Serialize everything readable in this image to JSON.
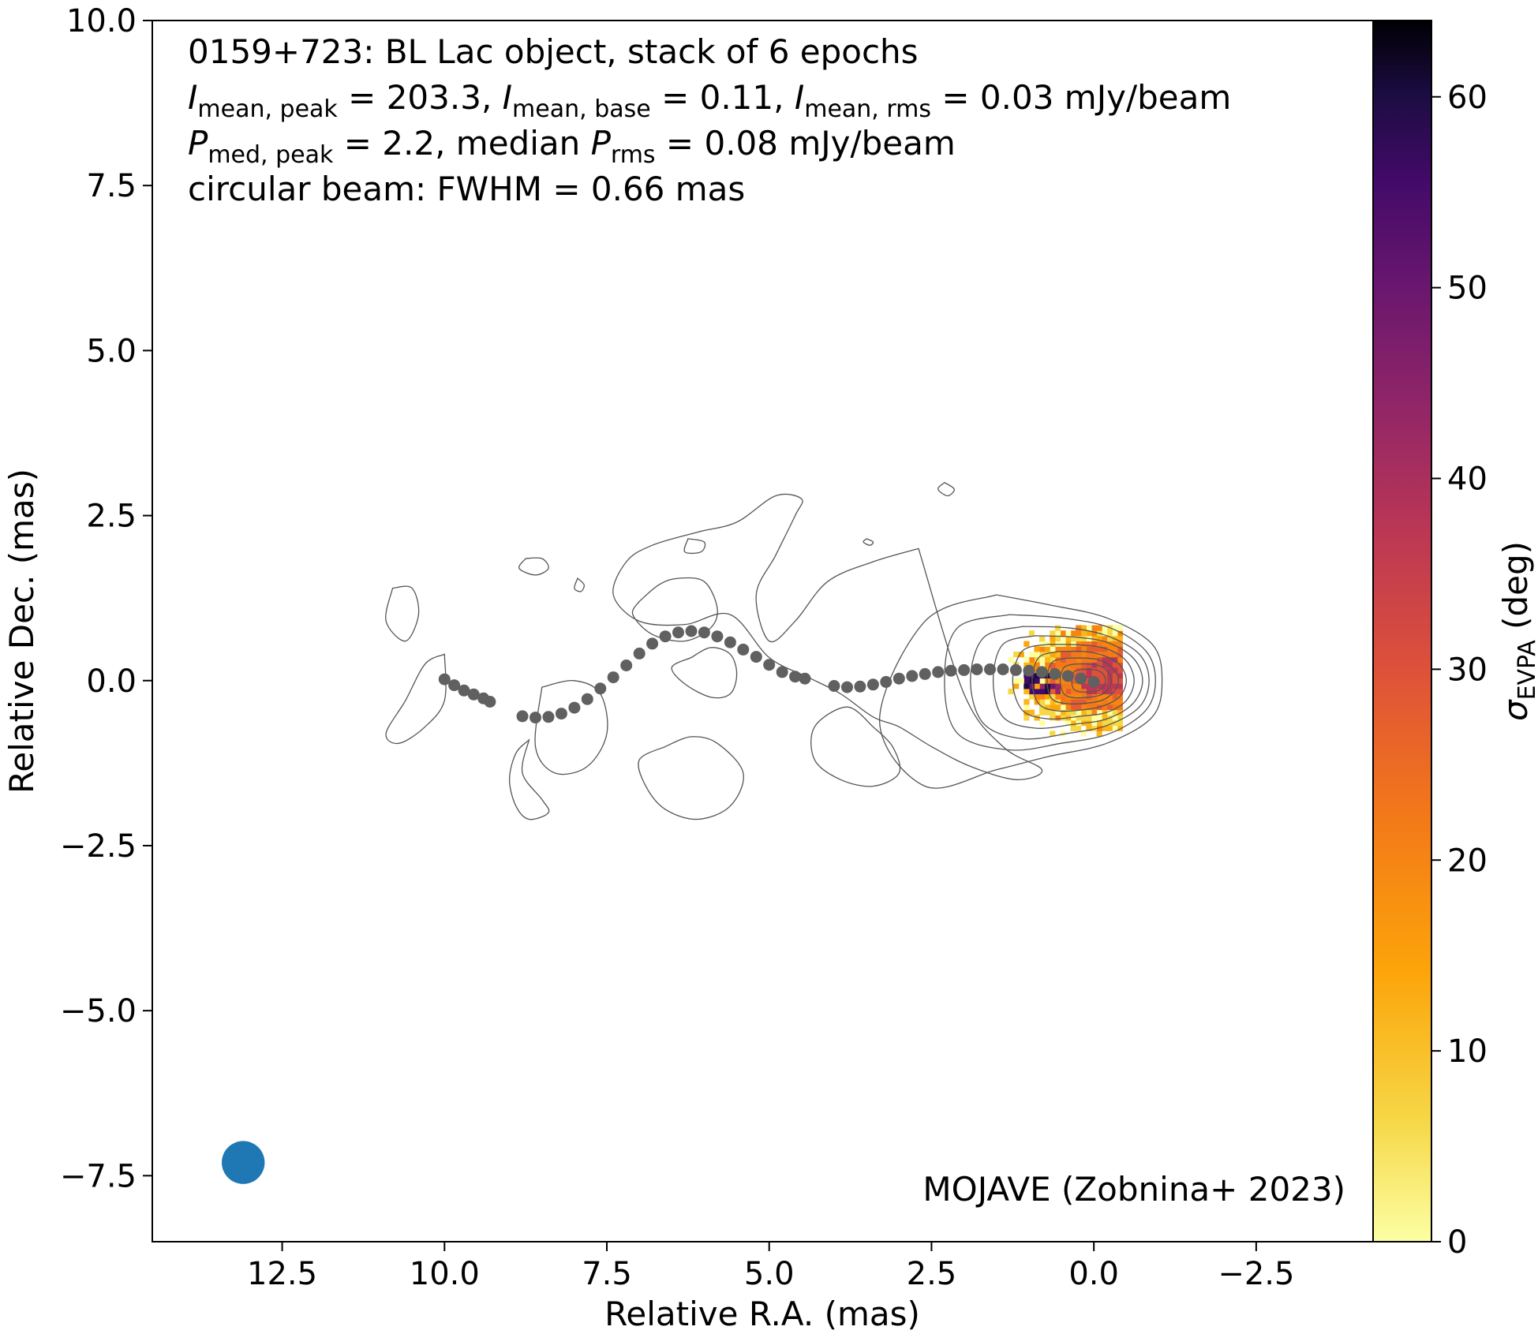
{
  "chart_data": {
    "type": "scatter",
    "title": "",
    "xlabel": "Relative R.A. (mas)",
    "ylabel": "Relative Dec. (mas)",
    "xlim": [
      14.5,
      -4.3
    ],
    "ylim": [
      -8.5,
      10.0
    ],
    "x_inverted": true,
    "x_ticks": [
      12.5,
      10.0,
      7.5,
      5.0,
      2.5,
      0.0,
      -2.5
    ],
    "x_tick_labels": [
      "12.5",
      "10.0",
      "7.5",
      "5.0",
      "2.5",
      "0.0",
      "−2.5"
    ],
    "y_ticks": [
      10.0,
      7.5,
      5.0,
      2.5,
      0.0,
      -2.5,
      -5.0,
      -7.5
    ],
    "y_tick_labels": [
      "10.0",
      "7.5",
      "5.0",
      "2.5",
      "0.0",
      "−2.5",
      "−5.0",
      "−7.5"
    ],
    "grid": false,
    "annotations": {
      "line1": "0159+723: BL Lac object, stack of 6 epochs",
      "line2": {
        "i1_sym": "I",
        "i1_sub": "mean, peak",
        "i1_val": " = 203.3, ",
        "i2_sym": "I",
        "i2_sub": "mean, base",
        "i2_val": " = 0.11, ",
        "i3_sym": "I",
        "i3_sub": "mean, rms",
        "i3_val": " = 0.03 mJy/beam"
      },
      "line3": {
        "p1_sym": "P",
        "p1_sub": "med, peak",
        "p1_val": " = 2.2, median ",
        "p2_sym": "P",
        "p2_sub": "rms",
        "p2_val": " = 0.08 mJy/beam"
      },
      "line4": "circular beam: FWHM = 0.66 mas",
      "credit": "MOJAVE (Zobnina+ 2023)"
    },
    "beam": {
      "x": 13.1,
      "y": -7.3,
      "fwhm_mas": 0.66,
      "color": "#1f77b4"
    },
    "ridgeline": {
      "color": "#606060",
      "segments": [
        {
          "x": [
            10.0,
            9.85,
            9.7,
            9.55,
            9.4,
            9.3
          ],
          "y": [
            0.02,
            -0.07,
            -0.15,
            -0.21,
            -0.27,
            -0.32
          ]
        },
        {
          "x": [
            8.8,
            8.6,
            8.4,
            8.2,
            8.0,
            7.8,
            7.6,
            7.4,
            7.2,
            7.0,
            6.8,
            6.6,
            6.4,
            6.2,
            6.0,
            5.8,
            5.6,
            5.4,
            5.2,
            5.0,
            4.8,
            4.6,
            4.45
          ],
          "y": [
            -0.54,
            -0.56,
            -0.55,
            -0.5,
            -0.41,
            -0.28,
            -0.12,
            0.05,
            0.23,
            0.41,
            0.56,
            0.67,
            0.73,
            0.75,
            0.73,
            0.67,
            0.58,
            0.47,
            0.36,
            0.24,
            0.13,
            0.06,
            0.03
          ]
        },
        {
          "x": [
            4.0,
            3.8,
            3.6,
            3.4,
            3.2,
            3.0,
            2.8,
            2.6,
            2.4,
            2.2,
            2.0,
            1.8,
            1.6,
            1.4,
            1.2,
            1.0,
            0.8,
            0.6,
            0.4,
            0.2,
            0.0
          ],
          "y": [
            -0.08,
            -0.1,
            -0.09,
            -0.06,
            -0.02,
            0.03,
            0.07,
            0.1,
            0.13,
            0.15,
            0.16,
            0.17,
            0.17,
            0.17,
            0.16,
            0.15,
            0.13,
            0.1,
            0.07,
            0.03,
            -0.02
          ]
        }
      ]
    },
    "contours": {
      "color": "#555555",
      "core_levels": [
        {
          "x": [
            1.5,
            0.7,
            -0.2,
            -0.9,
            -1.05,
            -0.9,
            -0.2,
            0.7,
            1.5,
            2.6,
            3.3,
            2.6,
            1.5
          ],
          "y": [
            1.3,
            1.15,
            0.95,
            0.55,
            0.0,
            -0.55,
            -0.95,
            -1.15,
            -1.35,
            -1.6,
            -0.6,
            0.9,
            1.3
          ]
        },
        {
          "x": [
            1.3,
            0.5,
            -0.25,
            -0.8,
            -0.95,
            -0.8,
            -0.25,
            0.5,
            1.3,
            2.1,
            2.3,
            2.1,
            1.3
          ],
          "y": [
            1.0,
            0.95,
            0.8,
            0.45,
            0.0,
            -0.45,
            -0.8,
            -0.95,
            -1.05,
            -0.8,
            0.0,
            0.8,
            1.0
          ]
        },
        {
          "x": [
            1.1,
            0.4,
            -0.2,
            -0.7,
            -0.85,
            -0.7,
            -0.2,
            0.4,
            1.1,
            1.7,
            1.9,
            1.7,
            1.1
          ],
          "y": [
            0.82,
            0.8,
            0.68,
            0.4,
            0.0,
            -0.4,
            -0.68,
            -0.8,
            -0.88,
            -0.65,
            0.0,
            0.65,
            0.82
          ]
        },
        {
          "x": [
            0.9,
            0.3,
            -0.2,
            -0.6,
            -0.75,
            -0.6,
            -0.2,
            0.3,
            0.9,
            1.4,
            1.55,
            1.4,
            0.9
          ],
          "y": [
            0.68,
            0.66,
            0.58,
            0.35,
            0.0,
            -0.35,
            -0.58,
            -0.66,
            -0.72,
            -0.55,
            0.0,
            0.55,
            0.68
          ]
        },
        {
          "x": [
            0.7,
            0.2,
            -0.2,
            -0.5,
            -0.62,
            -0.5,
            -0.2,
            0.2,
            0.7,
            1.1,
            1.25,
            1.1,
            0.7
          ],
          "y": [
            0.55,
            0.54,
            0.48,
            0.3,
            0.0,
            -0.3,
            -0.48,
            -0.54,
            -0.58,
            -0.45,
            0.0,
            0.45,
            0.55
          ]
        },
        {
          "x": [
            0.55,
            0.15,
            -0.15,
            -0.4,
            -0.5,
            -0.4,
            -0.15,
            0.15,
            0.55,
            0.85,
            0.95,
            0.85,
            0.55
          ],
          "y": [
            0.44,
            0.44,
            0.38,
            0.24,
            0.0,
            -0.24,
            -0.38,
            -0.44,
            -0.46,
            -0.35,
            0.0,
            0.35,
            0.44
          ]
        },
        {
          "x": [
            0.42,
            0.1,
            -0.12,
            -0.3,
            -0.38,
            -0.3,
            -0.12,
            0.1,
            0.42,
            0.65,
            0.72,
            0.65,
            0.42
          ],
          "y": [
            0.34,
            0.34,
            0.3,
            0.18,
            0.0,
            -0.18,
            -0.3,
            -0.34,
            -0.35,
            -0.27,
            0.0,
            0.27,
            0.34
          ]
        },
        {
          "x": [
            0.3,
            0.07,
            -0.1,
            -0.22,
            -0.27,
            -0.22,
            -0.1,
            0.07,
            0.3,
            0.46,
            0.52,
            0.46,
            0.3
          ],
          "y": [
            0.25,
            0.25,
            0.22,
            0.13,
            0.0,
            -0.13,
            -0.22,
            -0.25,
            -0.26,
            -0.2,
            0.0,
            0.2,
            0.25
          ]
        },
        {
          "x": [
            0.2,
            0.04,
            -0.07,
            -0.15,
            -0.18,
            -0.15,
            -0.07,
            0.04,
            0.2,
            0.31,
            0.34,
            0.31,
            0.2
          ],
          "y": [
            0.17,
            0.17,
            0.15,
            0.09,
            0.0,
            -0.09,
            -0.15,
            -0.17,
            -0.17,
            -0.13,
            0.0,
            0.13,
            0.17
          ]
        }
      ],
      "jet_outline": [
        {
          "x": [
            2.7,
            3.4,
            4.1,
            4.6,
            5.0,
            5.2,
            4.9,
            4.6,
            4.5,
            4.9,
            5.5,
            6.1,
            6.8,
            7.2,
            7.4,
            7.0,
            6.3,
            5.6,
            5.0,
            4.4,
            3.9,
            3.4,
            3.0,
            2.5,
            1.9,
            1.2,
            0.8,
            1.4,
            2.0,
            2.7
          ],
          "y": [
            2.0,
            1.8,
            1.5,
            0.9,
            0.6,
            1.3,
            1.9,
            2.5,
            2.75,
            2.8,
            2.4,
            2.25,
            2.05,
            1.8,
            1.3,
            0.9,
            0.85,
            1.0,
            0.35,
            0.05,
            -0.2,
            -0.55,
            -0.7,
            -1.0,
            -1.3,
            -1.5,
            -1.35,
            -1.0,
            -0.2,
            2.0
          ]
        },
        {
          "x": [
            3.4,
            3.8,
            4.3,
            4.3,
            3.9,
            3.4,
            3.0,
            3.1,
            3.4
          ],
          "y": [
            -0.7,
            -0.4,
            -0.7,
            -1.2,
            -1.5,
            -1.6,
            -1.4,
            -1.0,
            -0.7
          ]
        },
        {
          "x": [
            7.0,
            6.7,
            6.4,
            6.0,
            5.8,
            5.9,
            6.3,
            6.8,
            7.1,
            7.0
          ],
          "y": [
            1.2,
            1.45,
            1.55,
            1.5,
            1.1,
            0.8,
            0.6,
            0.7,
            1.0,
            1.2
          ]
        },
        {
          "x": [
            6.2,
            5.9,
            5.6,
            5.5,
            5.6,
            5.9,
            6.3,
            6.5,
            6.2
          ],
          "y": [
            0.35,
            0.5,
            0.4,
            0.1,
            -0.2,
            -0.25,
            -0.05,
            0.2,
            0.35
          ]
        },
        {
          "x": [
            6.6,
            6.2,
            5.8,
            5.4,
            5.6,
            6.1,
            6.6,
            6.9,
            7.0,
            6.6
          ],
          "y": [
            -1.0,
            -0.85,
            -0.95,
            -1.4,
            -1.9,
            -2.1,
            -1.95,
            -1.6,
            -1.2,
            -1.0
          ]
        },
        {
          "x": [
            8.5,
            8.0,
            7.6,
            7.5,
            7.8,
            8.3,
            8.6,
            8.5
          ],
          "y": [
            -0.1,
            0.0,
            -0.2,
            -0.8,
            -1.3,
            -1.4,
            -1.0,
            -0.1
          ]
        },
        {
          "x": [
            8.7,
            8.8,
            8.5,
            8.4,
            8.7,
            8.9,
            9.0,
            8.9,
            8.7
          ],
          "y": [
            -0.9,
            -1.4,
            -1.8,
            -2.0,
            -2.1,
            -1.9,
            -1.5,
            -1.1,
            -0.9
          ]
        },
        {
          "x": [
            10.0,
            10.3,
            10.6,
            10.9,
            10.7,
            10.3,
            10.0,
            10.0
          ],
          "y": [
            0.4,
            0.25,
            -0.3,
            -0.8,
            -0.95,
            -0.7,
            -0.3,
            0.4
          ]
        },
        {
          "x": [
            10.8,
            10.5,
            10.4,
            10.6,
            10.9,
            10.8
          ],
          "y": [
            1.4,
            1.4,
            1.0,
            0.6,
            0.9,
            1.4
          ]
        },
        {
          "x": [
            8.75,
            8.5,
            8.4,
            8.6,
            8.85,
            8.75
          ],
          "y": [
            1.85,
            1.85,
            1.7,
            1.6,
            1.7,
            1.85
          ]
        },
        {
          "x": [
            6.25,
            6.0,
            6.05,
            6.3,
            6.25
          ],
          "y": [
            2.15,
            2.1,
            1.95,
            1.95,
            2.15
          ]
        },
        {
          "x": [
            2.3,
            2.15,
            2.25,
            2.4,
            2.3
          ],
          "y": [
            3.0,
            2.9,
            2.8,
            2.9,
            3.0
          ]
        },
        {
          "x": [
            7.95,
            7.85,
            7.9,
            8.0,
            7.95
          ],
          "y": [
            1.55,
            1.45,
            1.35,
            1.4,
            1.55
          ]
        },
        {
          "x": [
            3.5,
            3.4,
            3.45,
            3.55,
            3.5
          ],
          "y": [
            2.15,
            2.1,
            2.05,
            2.1,
            2.15
          ]
        }
      ]
    },
    "sigma_evpa_map": {
      "center_x": -0.2,
      "center_y": 0.05,
      "extent_x": [
        1.6,
        -0.4
      ],
      "extent_y": [
        -0.8,
        0.8
      ]
    },
    "colorbar": {
      "label_sym": "σ",
      "label_sub": "EVPA",
      "label_rest": " (deg)",
      "range": [
        0,
        64
      ],
      "ticks": [
        0,
        10,
        20,
        30,
        40,
        50,
        60
      ],
      "tick_labels": [
        "0",
        "10",
        "20",
        "30",
        "40",
        "50",
        "60"
      ],
      "colormap": "inferno_r"
    }
  }
}
